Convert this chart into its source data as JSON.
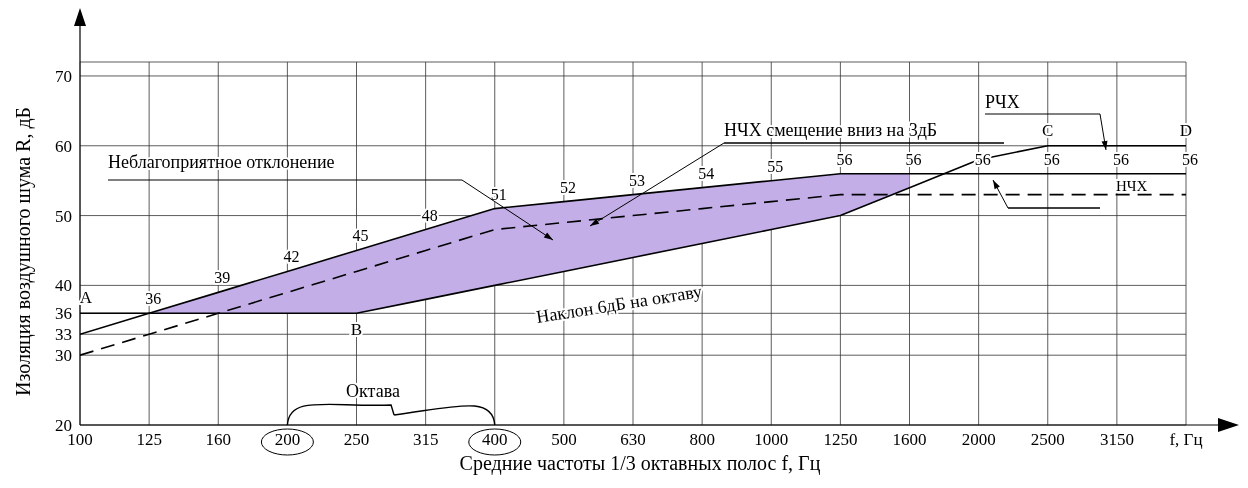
{
  "chart_data": {
    "type": "line",
    "xlabel": "Средние частоты 1/3 октавных полос f, Гц",
    "ylabel": "Изоляция воздушного шума R, дБ",
    "categories": [
      "100",
      "125",
      "160",
      "200",
      "250",
      "315",
      "400",
      "500",
      "630",
      "800",
      "1000",
      "1250",
      "1600",
      "2000",
      "2500",
      "3150",
      "f, Гц"
    ],
    "series": [
      {
        "name": "НЧХ",
        "color": "#000000",
        "line_style": "solid",
        "values": [
          33,
          36,
          39,
          42,
          45,
          48,
          51,
          52,
          53,
          54,
          55,
          56,
          56,
          56,
          56,
          56,
          56
        ],
        "value_labels": [
          null,
          "36",
          "39",
          "42",
          "45",
          "48",
          "51",
          "52",
          "53",
          "54",
          "55",
          "56",
          "56",
          "56",
          "56",
          "56",
          "56"
        ],
        "lower": [
          null,
          36,
          36,
          36,
          36,
          38,
          40,
          42,
          44,
          46,
          48,
          50,
          54,
          null,
          null,
          null,
          null
        ],
        "upper": [
          null,
          36,
          39,
          42,
          45,
          48,
          51,
          52,
          53,
          54,
          55,
          56,
          56,
          null,
          null,
          null,
          null
        ]
      },
      {
        "name": "РЧХ",
        "color": "#000000",
        "line_style": "solid",
        "values": [
          36,
          36,
          36,
          36,
          36,
          38,
          40,
          42,
          44,
          46,
          48,
          50,
          54,
          58,
          60,
          60,
          60
        ]
      },
      {
        "name": "НЧХ смещение вниз на 3дБ",
        "color": "#000000",
        "line_style": "dashed",
        "values": [
          30,
          33,
          36,
          39,
          42,
          45,
          48,
          49,
          50,
          51,
          52,
          53,
          53,
          53,
          53,
          53,
          53
        ]
      }
    ],
    "ylim": [
      20,
      72
    ],
    "yticks": [
      20,
      30,
      33,
      36,
      40,
      50,
      60,
      70
    ],
    "grid": true,
    "annotations": [
      "Неблагоприятное отклонение",
      "Наклон 6дБ на октаву",
      "Октава",
      {
        "text": "A",
        "x": "100",
        "y": 36
      },
      {
        "text": "B",
        "x": "250",
        "y": 36
      },
      {
        "text": "C",
        "x": "2500",
        "y": 60
      },
      {
        "text": "D",
        "x": "f, Гц",
        "y": 60
      }
    ]
  }
}
